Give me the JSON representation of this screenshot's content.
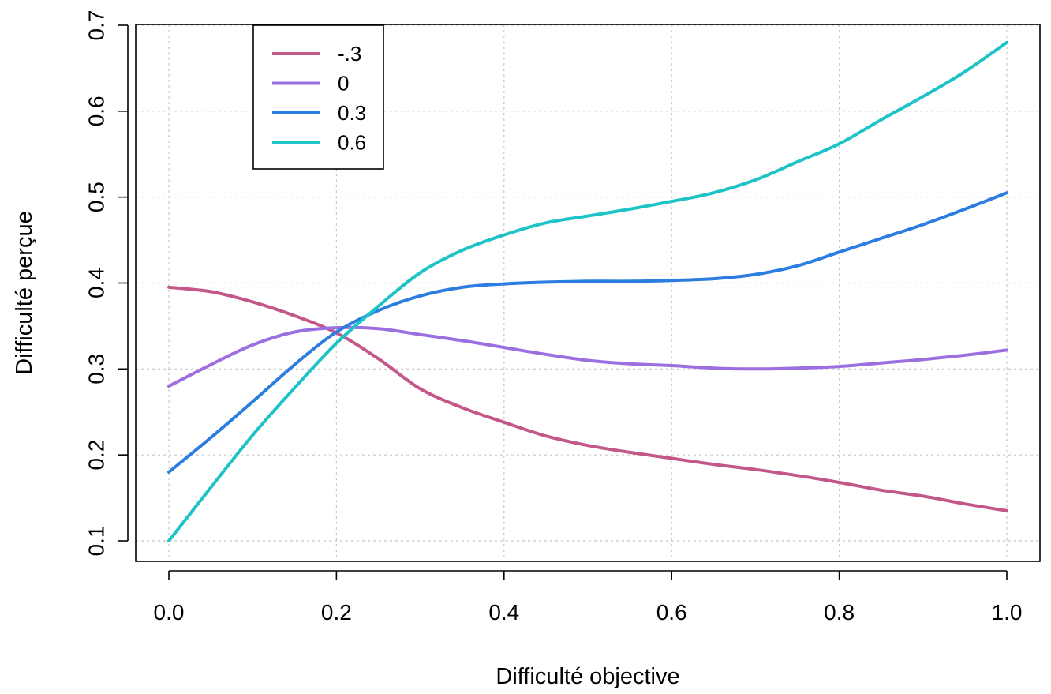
{
  "chart_data": {
    "type": "line",
    "title": "",
    "xlabel": "Difficulté objective",
    "ylabel": "Difficulté perçue",
    "xlim": [
      0.0,
      1.0
    ],
    "ylim": [
      0.1,
      0.7
    ],
    "x_ticks": [
      "0.0",
      "0.2",
      "0.4",
      "0.6",
      "0.8",
      "1.0"
    ],
    "y_ticks": [
      "0.1",
      "0.2",
      "0.3",
      "0.4",
      "0.5",
      "0.6",
      "0.7"
    ],
    "grid": true,
    "legend_placement": "top-left",
    "x": [
      0.0,
      0.05,
      0.1,
      0.15,
      0.2,
      0.25,
      0.3,
      0.35,
      0.4,
      0.45,
      0.5,
      0.55,
      0.6,
      0.65,
      0.7,
      0.75,
      0.8,
      0.85,
      0.9,
      0.95,
      1.0
    ],
    "series": [
      {
        "name": "-.3",
        "color": "#c4578a",
        "values": [
          0.395,
          0.39,
          0.378,
          0.362,
          0.342,
          0.312,
          0.277,
          0.255,
          0.238,
          0.222,
          0.211,
          0.203,
          0.196,
          0.189,
          0.183,
          0.176,
          0.168,
          0.159,
          0.152,
          0.143,
          0.135
        ]
      },
      {
        "name": "0",
        "color": "#9c6fe0",
        "values": [
          0.28,
          0.305,
          0.328,
          0.343,
          0.348,
          0.347,
          0.34,
          0.333,
          0.325,
          0.317,
          0.31,
          0.306,
          0.304,
          0.301,
          0.3,
          0.301,
          0.303,
          0.307,
          0.311,
          0.316,
          0.322
        ]
      },
      {
        "name": "0.3",
        "color": "#2c7de0",
        "values": [
          0.18,
          0.22,
          0.262,
          0.305,
          0.343,
          0.368,
          0.385,
          0.395,
          0.399,
          0.401,
          0.402,
          0.402,
          0.403,
          0.405,
          0.41,
          0.42,
          0.436,
          0.452,
          0.468,
          0.486,
          0.505
        ]
      },
      {
        "name": "0.6",
        "color": "#1ec3c8",
        "values": [
          0.1,
          0.162,
          0.223,
          0.278,
          0.33,
          0.373,
          0.412,
          0.438,
          0.456,
          0.47,
          0.478,
          0.486,
          0.495,
          0.505,
          0.52,
          0.541,
          0.562,
          0.59,
          0.617,
          0.646,
          0.68
        ]
      }
    ]
  }
}
